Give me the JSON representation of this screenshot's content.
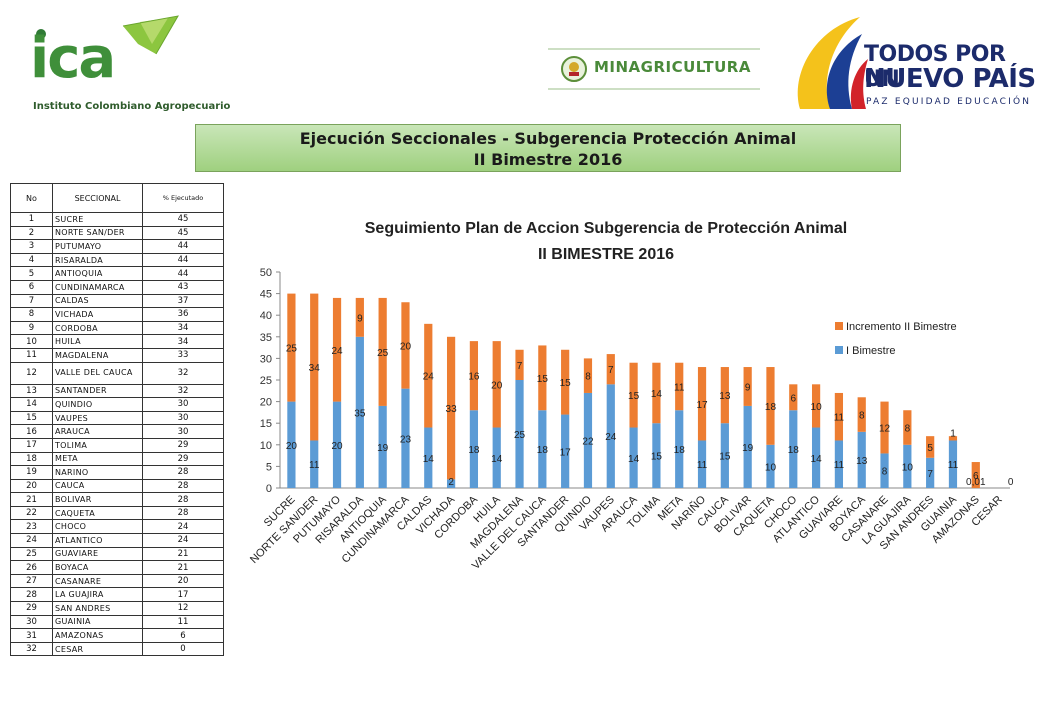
{
  "header": {
    "ica_logo_text": "ica",
    "ica_subtitle": "Instituto Colombiano Agropecuario",
    "minagricultura_text": "MINAGRICULTURA",
    "todos_line1": "TODOS POR UN",
    "todos_line2": "NUEVO PAÍS",
    "todos_line3": "PAZ  EQUIDAD  EDUCACIÓN"
  },
  "banner": {
    "line1": "Ejecución Seccionales - Subgerencia Protección Animal",
    "line2": "II Bimestre 2016"
  },
  "table": {
    "headers": [
      "No",
      "SECCIONAL",
      "% Ejecutado"
    ],
    "rows": [
      {
        "no": "1",
        "name": "SUCRE",
        "pct": "45"
      },
      {
        "no": "2",
        "name": "NORTE SAN/DER",
        "pct": "45"
      },
      {
        "no": "3",
        "name": "PUTUMAYO",
        "pct": "44"
      },
      {
        "no": "4",
        "name": "RISARALDA",
        "pct": "44"
      },
      {
        "no": "5",
        "name": "ANTIOQUIA",
        "pct": "44"
      },
      {
        "no": "6",
        "name": "CUNDINAMARCA",
        "pct": "43"
      },
      {
        "no": "7",
        "name": "CALDAS",
        "pct": "37"
      },
      {
        "no": "8",
        "name": "VICHADA",
        "pct": "36"
      },
      {
        "no": "9",
        "name": "CORDOBA",
        "pct": "34"
      },
      {
        "no": "10",
        "name": "HUILA",
        "pct": "34"
      },
      {
        "no": "11",
        "name": "MAGDALENA",
        "pct": "33"
      },
      {
        "no": "12",
        "name": "VALLE DEL CAUCA",
        "pct": "32"
      },
      {
        "no": "13",
        "name": "SANTANDER",
        "pct": "32"
      },
      {
        "no": "14",
        "name": "QUINDIO",
        "pct": "30"
      },
      {
        "no": "15",
        "name": "VAUPES",
        "pct": "30"
      },
      {
        "no": "16",
        "name": "ARAUCA",
        "pct": "30"
      },
      {
        "no": "17",
        "name": "TOLIMA",
        "pct": "29"
      },
      {
        "no": "18",
        "name": "META",
        "pct": "29"
      },
      {
        "no": "19",
        "name": "NARINO",
        "pct": "28"
      },
      {
        "no": "20",
        "name": "CAUCA",
        "pct": "28"
      },
      {
        "no": "21",
        "name": "BOLIVAR",
        "pct": "28"
      },
      {
        "no": "22",
        "name": "CAQUETA",
        "pct": "28"
      },
      {
        "no": "23",
        "name": "CHOCO",
        "pct": "24"
      },
      {
        "no": "24",
        "name": "ATLANTICO",
        "pct": "24"
      },
      {
        "no": "25",
        "name": "GUAVIARE",
        "pct": "21"
      },
      {
        "no": "26",
        "name": "BOYACA",
        "pct": "21"
      },
      {
        "no": "27",
        "name": "CASANARE",
        "pct": "20"
      },
      {
        "no": "28",
        "name": "LA GUAJIRA",
        "pct": "17"
      },
      {
        "no": "29",
        "name": "SAN ANDRES",
        "pct": "12"
      },
      {
        "no": "30",
        "name": "GUAINIA",
        "pct": "11"
      },
      {
        "no": "31",
        "name": "AMAZONAS",
        "pct": "6"
      },
      {
        "no": "32",
        "name": "CESAR",
        "pct": "0"
      }
    ]
  },
  "colors": {
    "series_i": "#5b9bd5",
    "series_ii": "#ed7d31",
    "banner_green": "#a9d58c"
  },
  "chart_data": {
    "type": "bar",
    "stacked": true,
    "title": "Seguimiento Plan de Accion  Subgerencia de Protección Animal",
    "subtitle": "II BIMESTRE 2016",
    "ylim": [
      0,
      50
    ],
    "yticks": [
      0,
      5,
      10,
      15,
      20,
      25,
      30,
      35,
      40,
      45,
      50
    ],
    "legend_position": "right",
    "categories": [
      "SUCRE",
      "NORTE SAN/DER",
      "PUTUMAYO",
      "RISARALDA",
      "ANTIOQUIA",
      "CUNDINAMARCA",
      "CALDAS",
      "VICHADA",
      "CORDOBA",
      "HUILA",
      "MAGDALENA",
      "VALLE DEL CAUCA",
      "SANTANDER",
      "QUINDIO",
      "VAUPES",
      "ARAUCA",
      "TOLIMA",
      "META",
      "NARIÑO",
      "CAUCA",
      "BOLIVAR",
      "CAQUETA",
      "CHOCO",
      "ATLANTICO",
      "GUAVIARE",
      "BOYACA",
      "CASANARE",
      "LA GUAJIRA",
      "SAN ANDRES",
      "GUAINIA",
      "AMAZONAS",
      "CESAR"
    ],
    "series": [
      {
        "name": "I Bimestre",
        "values": [
          20,
          11,
          20,
          35,
          19,
          23,
          14,
          2,
          18,
          14,
          25,
          18,
          17,
          22,
          24,
          14,
          15,
          18,
          11,
          15,
          19,
          10,
          18,
          14,
          11,
          13,
          8,
          10,
          7,
          11,
          0.01,
          0
        ],
        "labels": [
          "20",
          "11",
          "20",
          "35",
          "19",
          "23",
          "14",
          "2",
          "18",
          "14",
          "25",
          "18",
          "17",
          "22",
          "24",
          "14",
          "15",
          "18",
          "11",
          "15",
          "19",
          "10",
          "18",
          "14",
          "11",
          "13",
          "8",
          "10",
          "7",
          "11",
          "0,01",
          ""
        ]
      },
      {
        "name": "Incremento II Bimestre",
        "values": [
          25,
          34,
          24,
          9,
          25,
          20,
          24,
          33,
          16,
          20,
          7,
          15,
          15,
          8,
          7,
          15,
          14,
          11,
          17,
          13,
          9,
          18,
          6,
          10,
          11,
          8,
          12,
          8,
          5,
          1,
          6,
          0
        ],
        "labels": [
          "25",
          "34",
          "24",
          "9",
          "25",
          "20",
          "24",
          "33",
          "16",
          "20",
          "7",
          "15",
          "15",
          "8",
          "7",
          "15",
          "14",
          "11",
          "17",
          "13",
          "9",
          "18",
          "6",
          "10",
          "11",
          "8",
          "12",
          "8",
          "5",
          "1",
          "6",
          "0"
        ]
      }
    ],
    "legend": [
      "Incremento II Bimestre",
      "I Bimestre"
    ]
  }
}
